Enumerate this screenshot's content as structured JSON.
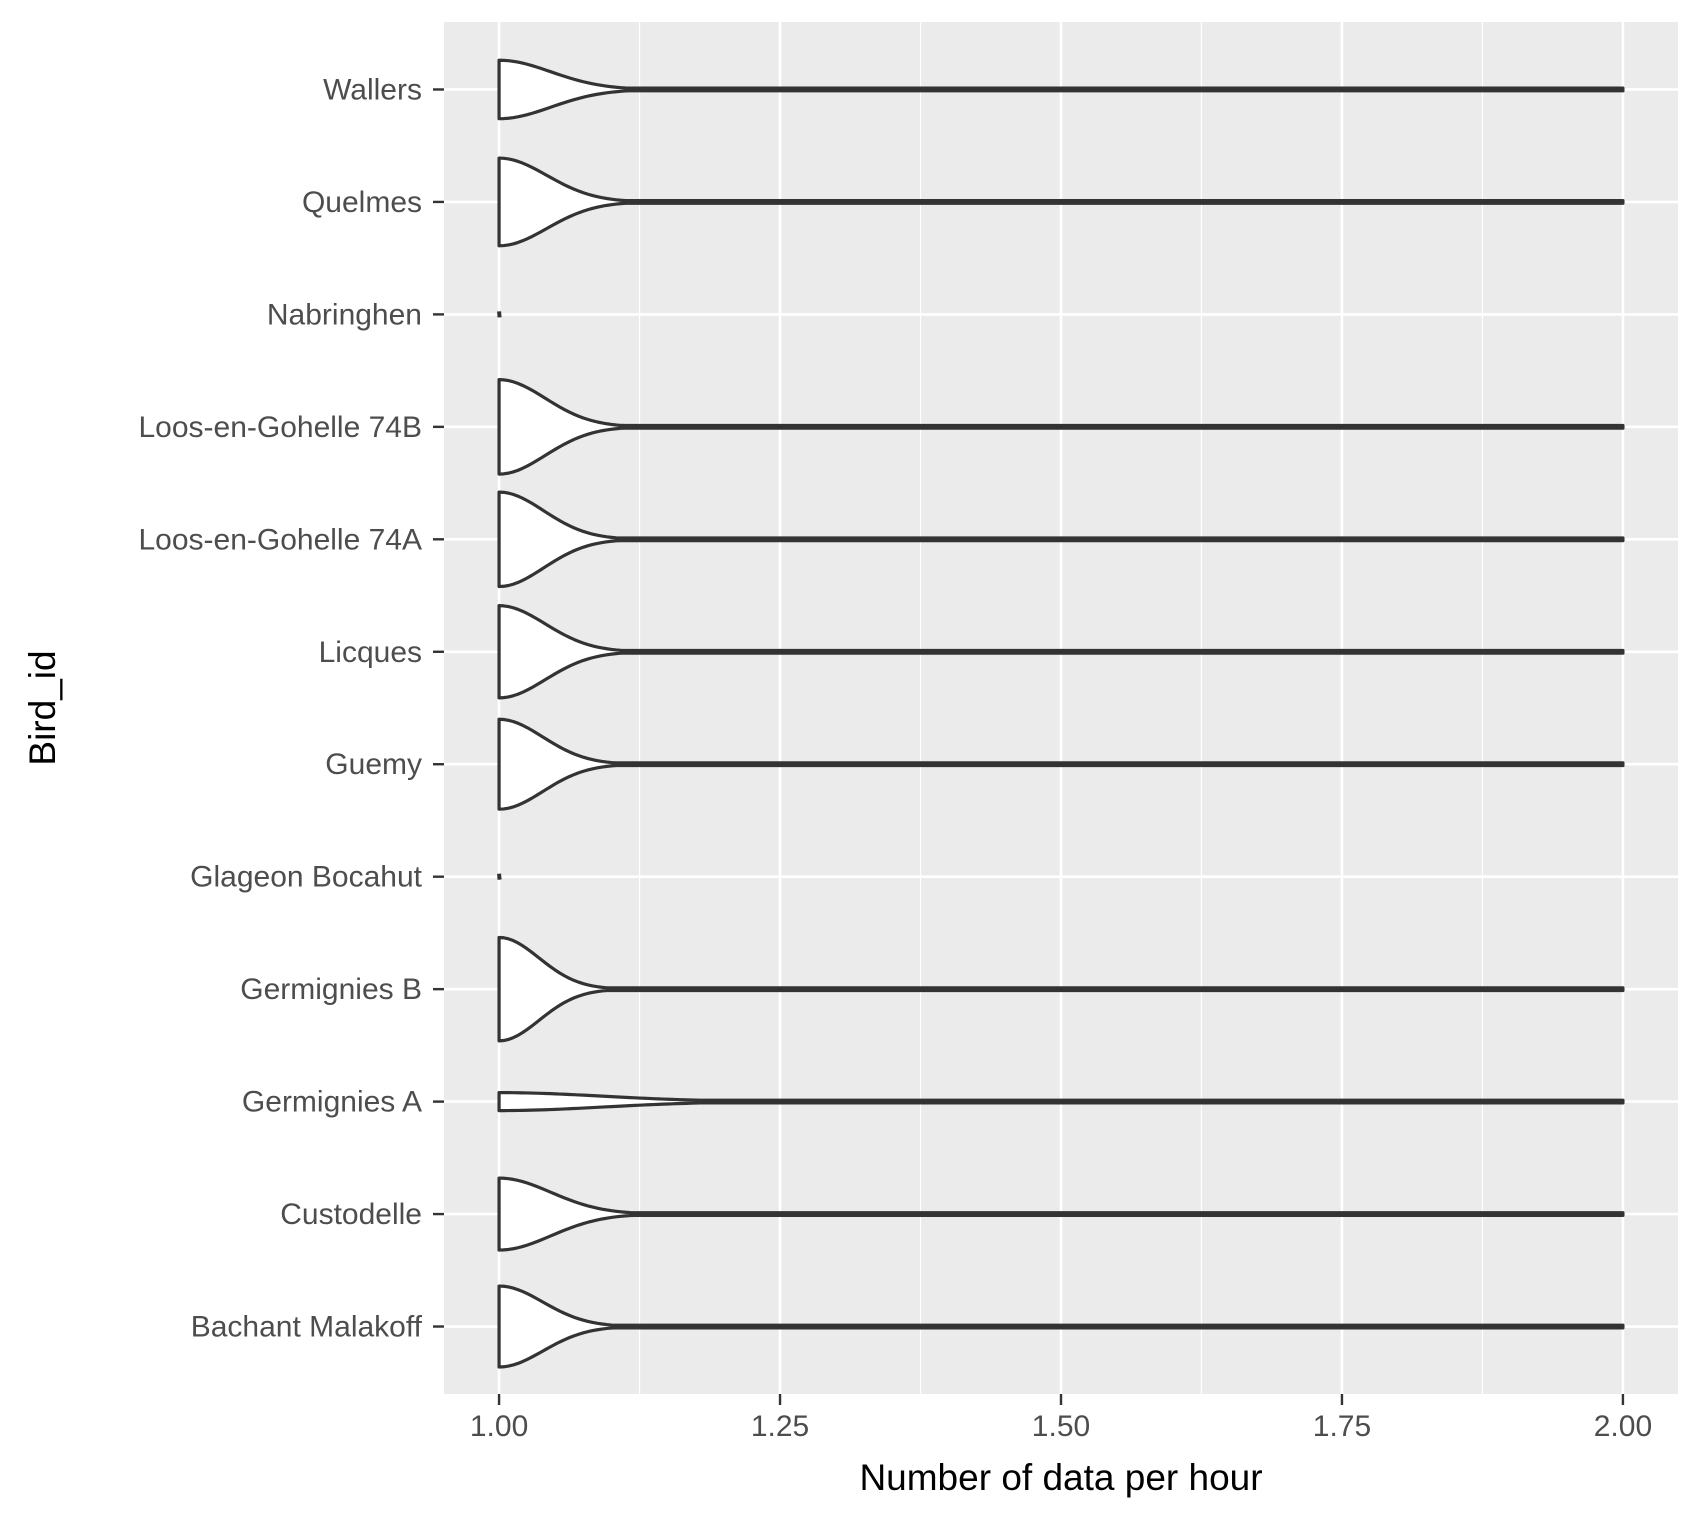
{
  "chart_data": {
    "type": "violin",
    "orientation": "horizontal",
    "xlabel": "Number of data per hour",
    "ylabel": "Bird_id",
    "xlim": [
      0.951,
      2.049
    ],
    "x_ticks": [
      1.0,
      1.25,
      1.5,
      1.75,
      2.0
    ],
    "x_tick_labels": [
      "1.00",
      "1.25",
      "1.50",
      "1.75",
      "2.00"
    ],
    "grid": true,
    "legend": "none",
    "colors": {
      "panel_background": "#ebebeb",
      "grid": "#ffffff",
      "violin_fill": "#ffffff",
      "violin_outline": "#333333"
    },
    "categories": [
      "Bachant Malakoff",
      "Custodelle",
      "Germignies A",
      "Germignies B",
      "Glageon Bocahut",
      "Guemy",
      "Licques",
      "Loos-en-Gohelle 74A",
      "Loos-en-Gohelle 74B",
      "Nabringhen",
      "Quelmes",
      "Wallers"
    ],
    "violins": [
      {
        "category": "Bachant Malakoff",
        "min": 1.0,
        "max": 2.0,
        "peak_half_width": 0.36,
        "decay": 0.055
      },
      {
        "category": "Custodelle",
        "min": 1.0,
        "max": 2.0,
        "peak_half_width": 0.32,
        "decay": 0.065
      },
      {
        "category": "Germignies A",
        "min": 1.0,
        "max": 2.0,
        "peak_half_width": 0.08,
        "decay": 0.13
      },
      {
        "category": "Germignies B",
        "min": 1.0,
        "max": 2.0,
        "peak_half_width": 0.46,
        "decay": 0.05
      },
      {
        "category": "Glageon Bocahut",
        "min": 1.0,
        "max": 1.0,
        "peak_half_width": 0.0,
        "decay": 0.0
      },
      {
        "category": "Guemy",
        "min": 1.0,
        "max": 2.0,
        "peak_half_width": 0.4,
        "decay": 0.055
      },
      {
        "category": "Licques",
        "min": 1.0,
        "max": 2.0,
        "peak_half_width": 0.41,
        "decay": 0.058
      },
      {
        "category": "Loos-en-Gohelle 74A",
        "min": 1.0,
        "max": 2.0,
        "peak_half_width": 0.42,
        "decay": 0.056
      },
      {
        "category": "Loos-en-Gohelle 74B",
        "min": 1.0,
        "max": 2.0,
        "peak_half_width": 0.42,
        "decay": 0.058
      },
      {
        "category": "Nabringhen",
        "min": 1.0,
        "max": 1.0,
        "peak_half_width": 0.0,
        "decay": 0.0
      },
      {
        "category": "Quelmes",
        "min": 1.0,
        "max": 2.0,
        "peak_half_width": 0.39,
        "decay": 0.06
      },
      {
        "category": "Wallers",
        "min": 1.0,
        "max": 2.0,
        "peak_half_width": 0.26,
        "decay": 0.065
      }
    ]
  }
}
